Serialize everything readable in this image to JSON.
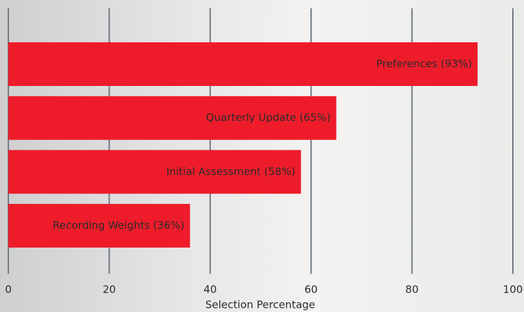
{
  "chart_data": {
    "type": "barh",
    "x_label": "Selection Percentage",
    "values": [
      93,
      65,
      58,
      36
    ],
    "value_labels": [
      "Preferences (93%)",
      "Quarterly Update (65%)",
      "Initial Assessment (58%)",
      "Recording Weights (36%)"
    ],
    "color": "#ee1c2b",
    "xlim": [
      0,
      100
    ],
    "xticks": [
      0,
      20,
      40,
      60,
      80,
      100
    ],
    "grid": true
  }
}
